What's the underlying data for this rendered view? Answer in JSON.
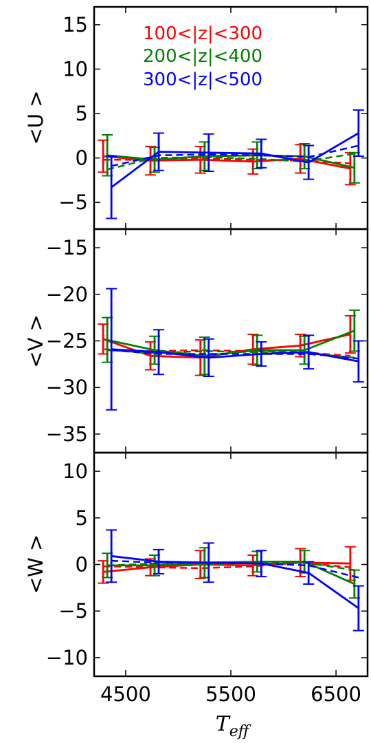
{
  "chart_data": {
    "type": "line",
    "xlabel": "T",
    "xlabel_subscript": "eff",
    "xticks": [
      4500,
      5500,
      6500
    ],
    "xlim": [
      4200,
      6800
    ],
    "x": [
      4325,
      4775,
      5250,
      5750,
      6200,
      6675
    ],
    "legend": {
      "placement": "top-center",
      "entries": [
        {
          "label": "100<|z|<300",
          "color": "#ff0000"
        },
        {
          "label": "200<|z|<400",
          "color": "#008000"
        },
        {
          "label": "300<|z|<500",
          "color": "#0000ff"
        }
      ]
    },
    "panels": [
      {
        "ylabel": "<U >",
        "ylim": [
          -8,
          17
        ],
        "yticks": [
          -5,
          0,
          5,
          10,
          15
        ],
        "yticklabels": [
          "−5",
          "0",
          "5",
          "10",
          "15"
        ],
        "series": [
          {
            "name": "100<|z|<300",
            "color": "#ff0000",
            "values": [
              0.2,
              -0.3,
              -0.2,
              -0.4,
              -0.1,
              -1.2
            ],
            "errors": [
              1.8,
              1.6,
              1.5,
              1.4,
              1.6,
              1.8
            ],
            "dashed": [
              -0.2,
              -0.2,
              0.0,
              -0.2,
              -0.3,
              -0.6
            ]
          },
          {
            "name": "200<|z|<400",
            "color": "#008000",
            "values": [
              0.3,
              -0.2,
              0.2,
              0.3,
              0.2,
              -1.1
            ],
            "errors": [
              2.3,
              1.4,
              1.6,
              1.5,
              1.4,
              1.7
            ],
            "dashed": [
              -1.3,
              0.0,
              0.1,
              -0.1,
              -0.4,
              0.5
            ]
          },
          {
            "name": "300<|z|<500",
            "color": "#0000ff",
            "values": [
              -3.3,
              0.7,
              0.6,
              0.5,
              -0.5,
              2.8
            ],
            "errors": [
              3.5,
              2.1,
              2.1,
              1.6,
              1.9,
              2.6
            ],
            "dashed": [
              -0.9,
              0.3,
              0.4,
              0.3,
              0.1,
              1.4
            ]
          }
        ]
      },
      {
        "ylabel": "<V >",
        "ylim": [
          -37,
          -13
        ],
        "yticks": [
          -35,
          -30,
          -25,
          -20,
          -15
        ],
        "yticklabels": [
          "−35",
          "−30",
          "−25",
          "−20",
          "−15"
        ],
        "series": [
          {
            "name": "100<|z|<300",
            "color": "#ff0000",
            "values": [
              -24.8,
              -26.6,
              -26.8,
              -25.9,
              -25.5,
              -24.3
            ],
            "errors": [
              1.6,
              1.5,
              1.9,
              1.6,
              1.2,
              2.0
            ],
            "dashed": [
              -25.9,
              -26.1,
              -26.0,
              -26.1,
              -26.2,
              -26.6
            ]
          },
          {
            "name": "200<|z|<400",
            "color": "#008000",
            "values": [
              -24.9,
              -26.0,
              -26.6,
              -26.0,
              -26.0,
              -23.9
            ],
            "errors": [
              2.4,
              1.5,
              2.0,
              1.6,
              1.5,
              2.2
            ],
            "dashed": [
              -26.0,
              -26.3,
              -26.1,
              -26.2,
              -26.3,
              -26.8
            ]
          },
          {
            "name": "300<|z|<500",
            "color": "#0000ff",
            "values": [
              -25.9,
              -26.2,
              -26.8,
              -26.4,
              -26.2,
              -27.2
            ],
            "errors": [
              6.5,
              2.4,
              2.0,
              1.3,
              1.8,
              2.2
            ],
            "dashed": [
              -26.0,
              -26.4,
              -26.4,
              -26.4,
              -26.4,
              -26.9
            ]
          }
        ]
      },
      {
        "ylabel": "<W >",
        "ylim": [
          -12,
          12
        ],
        "yticks": [
          -10,
          -5,
          0,
          5,
          10
        ],
        "yticklabels": [
          "−10",
          "−5",
          "0",
          "5",
          "10"
        ],
        "series": [
          {
            "name": "100<|z|<300",
            "color": "#ff0000",
            "values": [
              -0.8,
              -0.3,
              0.0,
              -0.1,
              0.2,
              0.1
            ],
            "errors": [
              1.2,
              0.9,
              1.5,
              1.1,
              1.5,
              1.8
            ],
            "dashed": [
              -0.2,
              -0.3,
              -0.4,
              -0.2,
              0.2,
              -0.3
            ]
          },
          {
            "name": "200<|z|<400",
            "color": "#008000",
            "values": [
              -0.1,
              -0.1,
              0.2,
              0.3,
              0.3,
              -2.1
            ],
            "errors": [
              1.3,
              1.1,
              1.6,
              1.1,
              1.2,
              1.5
            ],
            "dashed": [
              -0.1,
              0.1,
              0.0,
              0.2,
              0.2,
              -0.6
            ]
          },
          {
            "name": "300<|z|<500",
            "color": "#0000ff",
            "values": [
              0.9,
              0.3,
              0.2,
              0.1,
              -0.9,
              -4.7
            ],
            "errors": [
              2.8,
              1.3,
              2.1,
              1.4,
              1.2,
              2.4
            ],
            "dashed": [
              0.4,
              0.2,
              0.2,
              0.1,
              -0.1,
              -1.4
            ]
          }
        ]
      }
    ]
  }
}
